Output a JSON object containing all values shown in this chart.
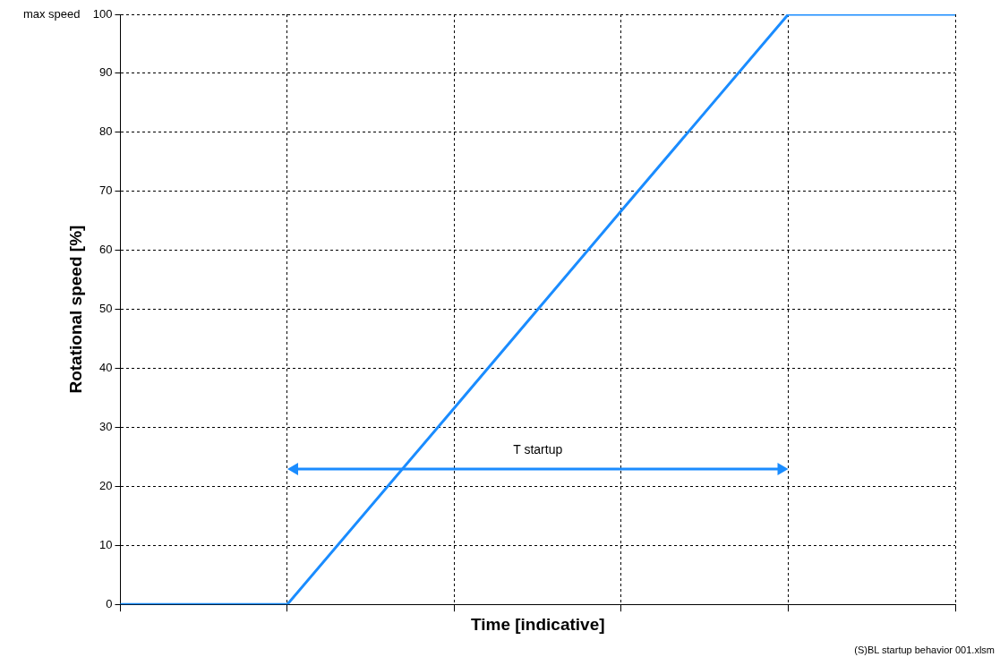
{
  "chart_data": {
    "type": "line",
    "xlabel": "Time [indicative]",
    "ylabel": "Rotational speed [%]",
    "categories": [
      null,
      null,
      null,
      null,
      null,
      null
    ],
    "series": [
      {
        "color": "#1a8cff",
        "values": [
          0,
          0,
          33.3,
          66.7,
          100,
          100
        ]
      }
    ],
    "ylim": [
      0,
      100
    ],
    "yticks": [
      0,
      10,
      20,
      30,
      40,
      50,
      60,
      70,
      80,
      90,
      100
    ],
    "grid": true,
    "legend": false,
    "tick_labels": "y",
    "marker": "none",
    "line_style": "solid",
    "annotations": [
      "max speed",
      "T startup",
      "(S)BL startup behavior 001.xlsm"
    ]
  }
}
